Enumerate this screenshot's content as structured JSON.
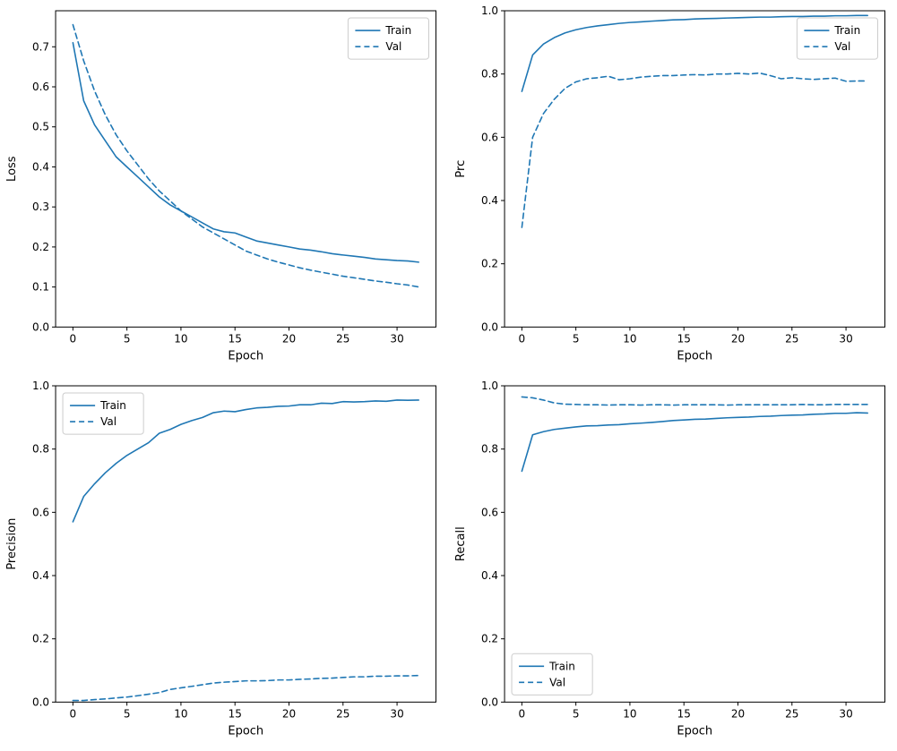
{
  "figure": {
    "background": "#ffffff",
    "accent": "#1f77b4",
    "spine_color": "#000000",
    "legend_edge_color": "#cccccc"
  },
  "chart_data": [
    {
      "type": "line",
      "id": "loss",
      "title": "",
      "xlabel": "Epoch",
      "ylabel": "Loss",
      "xlim": [
        -1.6,
        33.6
      ],
      "ylim": [
        0,
        0.79
      ],
      "xticks": [
        0,
        5,
        10,
        15,
        20,
        25,
        30
      ],
      "yticks": [
        0.0,
        0.1,
        0.2,
        0.3,
        0.4,
        0.5,
        0.6,
        0.7
      ],
      "ytick_decimals": 1,
      "grid": false,
      "legend_position": "upper right",
      "x": [
        0,
        1,
        2,
        3,
        4,
        5,
        6,
        7,
        8,
        9,
        10,
        11,
        12,
        13,
        14,
        15,
        16,
        17,
        18,
        19,
        20,
        21,
        22,
        23,
        24,
        25,
        26,
        27,
        28,
        29,
        30,
        31,
        32
      ],
      "series": [
        {
          "name": "Train",
          "style": "solid",
          "values": [
            0.71,
            0.565,
            0.505,
            0.465,
            0.425,
            0.4,
            0.375,
            0.35,
            0.325,
            0.305,
            0.29,
            0.275,
            0.26,
            0.245,
            0.238,
            0.235,
            0.225,
            0.215,
            0.21,
            0.205,
            0.2,
            0.195,
            0.192,
            0.188,
            0.183,
            0.18,
            0.177,
            0.174,
            0.17,
            0.168,
            0.166,
            0.165,
            0.162
          ]
        },
        {
          "name": "Val",
          "style": "dashed",
          "values": [
            0.755,
            0.665,
            0.59,
            0.53,
            0.48,
            0.44,
            0.405,
            0.37,
            0.34,
            0.315,
            0.29,
            0.27,
            0.25,
            0.235,
            0.22,
            0.205,
            0.19,
            0.18,
            0.17,
            0.162,
            0.155,
            0.148,
            0.142,
            0.137,
            0.132,
            0.127,
            0.123,
            0.119,
            0.115,
            0.112,
            0.108,
            0.105,
            0.1
          ]
        }
      ]
    },
    {
      "type": "line",
      "id": "prc",
      "title": "",
      "xlabel": "Epoch",
      "ylabel": "Prc",
      "xlim": [
        -1.6,
        33.6
      ],
      "ylim": [
        0,
        1.0
      ],
      "xticks": [
        0,
        5,
        10,
        15,
        20,
        25,
        30
      ],
      "yticks": [
        0.0,
        0.2,
        0.4,
        0.6,
        0.8,
        1.0
      ],
      "ytick_decimals": 1,
      "grid": false,
      "legend_position": "upper right",
      "x": [
        0,
        1,
        2,
        3,
        4,
        5,
        6,
        7,
        8,
        9,
        10,
        11,
        12,
        13,
        14,
        15,
        16,
        17,
        18,
        19,
        20,
        21,
        22,
        23,
        24,
        25,
        26,
        27,
        28,
        29,
        30,
        31,
        32
      ],
      "series": [
        {
          "name": "Train",
          "style": "solid",
          "values": [
            0.745,
            0.86,
            0.895,
            0.915,
            0.93,
            0.94,
            0.947,
            0.952,
            0.956,
            0.96,
            0.963,
            0.965,
            0.967,
            0.969,
            0.971,
            0.972,
            0.974,
            0.975,
            0.976,
            0.977,
            0.978,
            0.979,
            0.98,
            0.98,
            0.981,
            0.982,
            0.982,
            0.983,
            0.983,
            0.984,
            0.984,
            0.985,
            0.985
          ]
        },
        {
          "name": "Val",
          "style": "dashed",
          "values": [
            0.315,
            0.6,
            0.675,
            0.72,
            0.755,
            0.775,
            0.785,
            0.788,
            0.793,
            0.782,
            0.785,
            0.79,
            0.793,
            0.795,
            0.795,
            0.797,
            0.798,
            0.797,
            0.8,
            0.8,
            0.802,
            0.8,
            0.803,
            0.795,
            0.785,
            0.788,
            0.785,
            0.783,
            0.785,
            0.787,
            0.777,
            0.778,
            0.778
          ]
        }
      ]
    },
    {
      "type": "line",
      "id": "precision",
      "title": "",
      "xlabel": "Epoch",
      "ylabel": "Precision",
      "xlim": [
        -1.6,
        33.6
      ],
      "ylim": [
        0,
        1.0
      ],
      "xticks": [
        0,
        5,
        10,
        15,
        20,
        25,
        30
      ],
      "yticks": [
        0.0,
        0.2,
        0.4,
        0.6,
        0.8,
        1.0
      ],
      "ytick_decimals": 1,
      "grid": false,
      "legend_position": "upper left",
      "x": [
        0,
        1,
        2,
        3,
        4,
        5,
        6,
        7,
        8,
        9,
        10,
        11,
        12,
        13,
        14,
        15,
        16,
        17,
        18,
        19,
        20,
        21,
        22,
        23,
        24,
        25,
        26,
        27,
        28,
        29,
        30,
        31,
        32
      ],
      "series": [
        {
          "name": "Train",
          "style": "solid",
          "values": [
            0.57,
            0.65,
            0.69,
            0.725,
            0.755,
            0.78,
            0.8,
            0.82,
            0.85,
            0.862,
            0.878,
            0.89,
            0.9,
            0.915,
            0.92,
            0.918,
            0.925,
            0.93,
            0.932,
            0.935,
            0.936,
            0.94,
            0.94,
            0.945,
            0.944,
            0.95,
            0.949,
            0.95,
            0.952,
            0.951,
            0.955,
            0.954,
            0.955
          ]
        },
        {
          "name": "Val",
          "style": "dashed",
          "values": [
            0.005,
            0.005,
            0.008,
            0.01,
            0.013,
            0.016,
            0.02,
            0.025,
            0.03,
            0.04,
            0.045,
            0.05,
            0.055,
            0.06,
            0.063,
            0.065,
            0.067,
            0.067,
            0.068,
            0.07,
            0.07,
            0.072,
            0.073,
            0.075,
            0.076,
            0.078,
            0.08,
            0.08,
            0.082,
            0.082,
            0.083,
            0.083,
            0.084
          ]
        }
      ]
    },
    {
      "type": "line",
      "id": "recall",
      "title": "",
      "xlabel": "Epoch",
      "ylabel": "Recall",
      "xlim": [
        -1.6,
        33.6
      ],
      "ylim": [
        0,
        1.0
      ],
      "xticks": [
        0,
        5,
        10,
        15,
        20,
        25,
        30
      ],
      "yticks": [
        0.0,
        0.2,
        0.4,
        0.6,
        0.8,
        1.0
      ],
      "ytick_decimals": 1,
      "grid": false,
      "legend_position": "lower left",
      "x": [
        0,
        1,
        2,
        3,
        4,
        5,
        6,
        7,
        8,
        9,
        10,
        11,
        12,
        13,
        14,
        15,
        16,
        17,
        18,
        19,
        20,
        21,
        22,
        23,
        24,
        25,
        26,
        27,
        28,
        29,
        30,
        31,
        32
      ],
      "series": [
        {
          "name": "Train",
          "style": "solid",
          "values": [
            0.73,
            0.845,
            0.855,
            0.862,
            0.866,
            0.87,
            0.873,
            0.874,
            0.876,
            0.877,
            0.88,
            0.882,
            0.884,
            0.887,
            0.89,
            0.892,
            0.894,
            0.895,
            0.897,
            0.899,
            0.9,
            0.901,
            0.903,
            0.904,
            0.906,
            0.907,
            0.908,
            0.91,
            0.911,
            0.913,
            0.913,
            0.915,
            0.914
          ]
        },
        {
          "name": "Val",
          "style": "dashed",
          "values": [
            0.965,
            0.962,
            0.955,
            0.946,
            0.942,
            0.941,
            0.94,
            0.94,
            0.939,
            0.94,
            0.94,
            0.939,
            0.94,
            0.94,
            0.939,
            0.94,
            0.94,
            0.94,
            0.94,
            0.939,
            0.94,
            0.94,
            0.94,
            0.94,
            0.94,
            0.94,
            0.941,
            0.94,
            0.94,
            0.941,
            0.941,
            0.941,
            0.941
          ]
        }
      ]
    }
  ]
}
